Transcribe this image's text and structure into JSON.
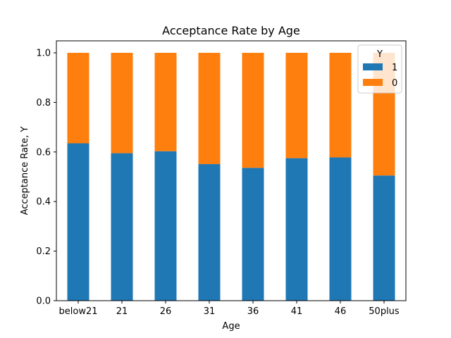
{
  "chart_data": {
    "type": "bar",
    "stacked": true,
    "title": "Acceptance Rate by Age",
    "xlabel": "Age",
    "ylabel": "Acceptance Rate, Y",
    "categories": [
      "below21",
      "21",
      "26",
      "31",
      "36",
      "41",
      "46",
      "50plus"
    ],
    "series": [
      {
        "name": "1",
        "color": "#1f77b4",
        "values": [
          0.635,
          0.595,
          0.603,
          0.551,
          0.536,
          0.575,
          0.578,
          0.505
        ]
      },
      {
        "name": "0",
        "color": "#ff7f0e",
        "values": [
          0.365,
          0.405,
          0.397,
          0.449,
          0.464,
          0.425,
          0.422,
          0.495
        ]
      }
    ],
    "ylim": [
      0,
      1.0
    ],
    "yticks": [
      "0.0",
      "0.2",
      "0.4",
      "0.6",
      "0.8",
      "1.0"
    ],
    "legend": {
      "title": "Y",
      "placement": "top-right"
    },
    "grid": false
  }
}
